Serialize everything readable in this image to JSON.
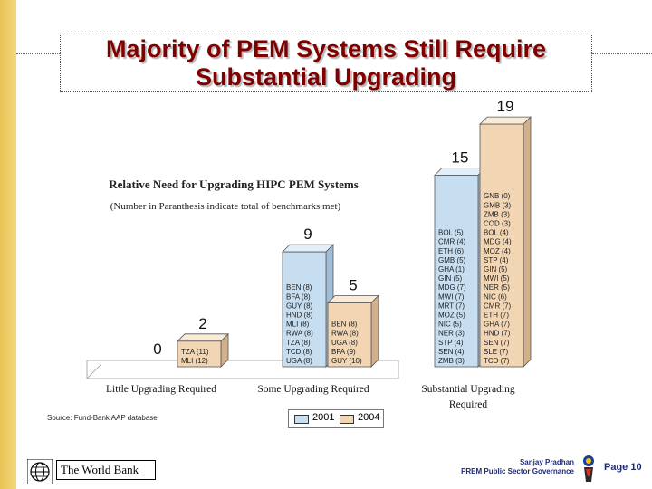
{
  "slide": {
    "title_line1": "Majority of PEM Systems Still Require",
    "title_line2": "Substantial Upgrading"
  },
  "chart_data": {
    "type": "bar",
    "title": "Relative Need for Upgrading HIPC PEM Systems",
    "subtitle": "(Number in Paranthesis indicate total of benchmarks met)",
    "categories": [
      "Little Upgrading Required",
      "Some Upgrading Required",
      "Substantial Upgrading Required"
    ],
    "series": [
      {
        "name": "2001",
        "values": [
          0,
          9,
          15
        ],
        "color": "#c6def0",
        "countries": [
          [],
          [
            "BEN (8)",
            "BFA (8)",
            "GUY (8)",
            "HND (8)",
            "MLI (8)",
            "RWA (8)",
            "TZA (8)",
            "TCD (8)",
            "UGA (8)"
          ],
          [
            "BOL (5)",
            "CMR (4)",
            "ETH (6)",
            "GMB (5)",
            "GHA (1)",
            "GIN (5)",
            "MDG (7)",
            "MWI (7)",
            "MRT (7)",
            "MOZ (5)",
            "NIC (5)",
            "NER (3)",
            "STP (4)",
            "SEN (4)",
            "ZMB (3)"
          ]
        ]
      },
      {
        "name": "2004",
        "values": [
          2,
          5,
          19
        ],
        "color": "#f2d6b4",
        "countries": [
          [
            "TZA (11)",
            "MLI (12)"
          ],
          [
            "BEN (8)",
            "RWA (8)",
            "UGA (8)",
            "BFA (9)",
            "GUY (10)"
          ],
          [
            "GNB (0)",
            "GMB (3)",
            "ZMB (3)",
            "COD (3)",
            "BOL (4)",
            "MDG (4)",
            "MOZ (4)",
            "STP (4)",
            "GIN (5)",
            "MWI (5)",
            "NER (5)",
            "NIC (6)",
            "CMR (7)",
            "ETH (7)",
            "GHA (7)",
            "HND (7)",
            "SEN (7)",
            "SLE (7)",
            "TCD (7)"
          ]
        ]
      }
    ],
    "legend": [
      "2001",
      "2004"
    ],
    "legend_position": "bottom",
    "grid": false
  },
  "footer": {
    "source": "Source: Fund-Bank AAP database",
    "logo_text": "The World Bank",
    "presenter_name": "Sanjay Pradhan",
    "presenter_title": "PREM Public Sector Governance",
    "page": "Page 10"
  },
  "icons": {
    "globe": "world-bank-globe-icon",
    "figure": "person-figure-icon"
  }
}
